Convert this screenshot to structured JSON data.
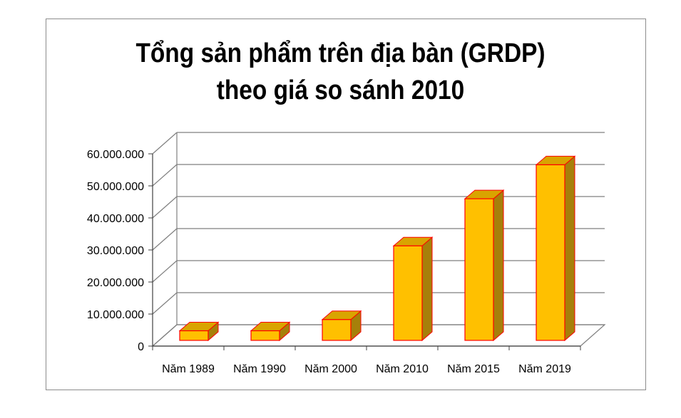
{
  "chart_data": {
    "type": "bar",
    "title_lines": [
      "Tổng sản phẩm trên địa bàn (GRDP)",
      "theo giá so sánh 2010"
    ],
    "categories": [
      "Năm 1989",
      "Năm 1990",
      "Năm 2000",
      "Năm 2010",
      "Năm 2015",
      "Năm 2019"
    ],
    "values": [
      3000000,
      3000000,
      6500000,
      29500000,
      44200000,
      54800000
    ],
    "y_ticks": [
      "0",
      "10.000.000",
      "20.000.000",
      "30.000.000",
      "40.000.000",
      "50.000.000",
      "60.000.000"
    ],
    "ylim": [
      0,
      60000000
    ],
    "three_d": true,
    "grid": true,
    "legend": "none",
    "colors": {
      "bar_front": "#FFC000",
      "bar_top": "#D9A400",
      "bar_side": "#A6800A",
      "bar_edge": "#FF0000",
      "grid": "#7f7f7f"
    }
  }
}
